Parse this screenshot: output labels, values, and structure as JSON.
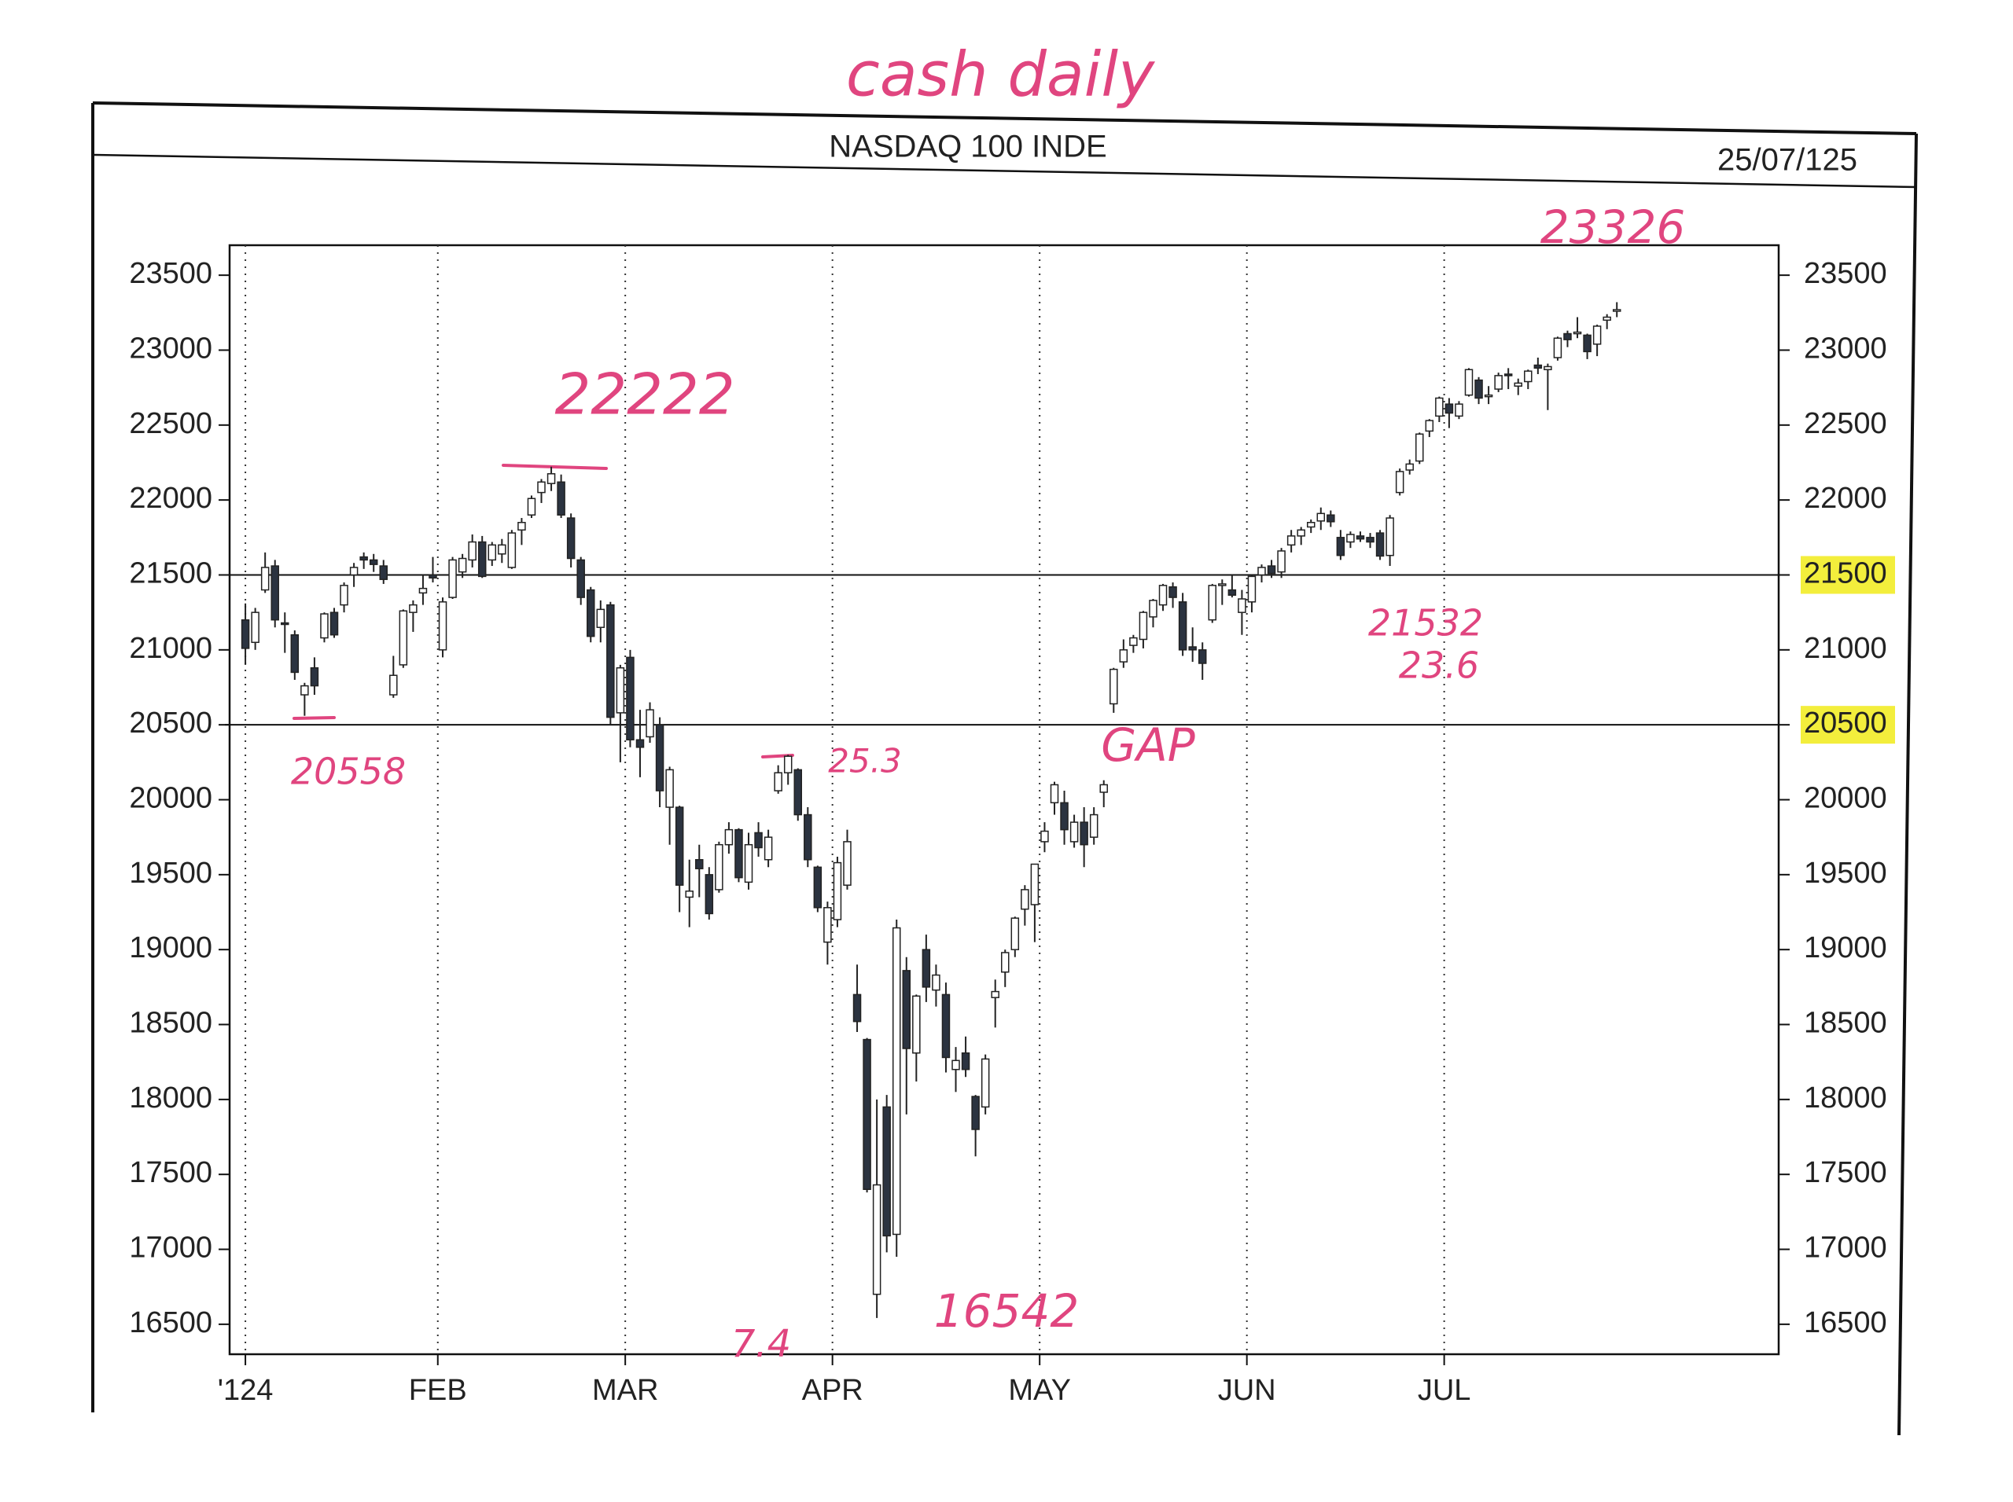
{
  "chart_data": {
    "type": "candlestick",
    "title": "NASDAQ 100 INDE",
    "date": "25/07/125",
    "annotations": [
      "cash daily",
      "23326",
      "22222",
      "20558",
      "25.3",
      "GAP",
      "7.4",
      "16542",
      "21532",
      "23.6"
    ],
    "up_color": "#ffffff",
    "down_color": "#2b3340",
    "annotation_color": "#e0457f",
    "xlim": [
      -1.6,
      155.4
    ],
    "xticks": [
      {
        "value": 0,
        "label": "'124"
      },
      {
        "value": 19.5,
        "label": "FEB"
      },
      {
        "value": 38.5,
        "label": "MAR"
      },
      {
        "value": 59.5,
        "label": "APR"
      },
      {
        "value": 80.5,
        "label": "MAY"
      },
      {
        "value": 101.5,
        "label": "JUN"
      },
      {
        "value": 121.5,
        "label": "JUL"
      }
    ],
    "ylim": [
      16300,
      23700
    ],
    "yticks": [
      16500,
      17000,
      17500,
      18000,
      18500,
      19000,
      19500,
      20000,
      20500,
      21000,
      21500,
      22000,
      22500,
      23000,
      23500
    ],
    "y2lim": [
      16300,
      23700
    ],
    "y2ticks": [
      16500,
      17000,
      17500,
      18000,
      18500,
      19000,
      19500,
      20000,
      20500,
      21000,
      21500,
      22000,
      22500,
      23000,
      23500
    ],
    "y2tick_highlight": {
      "color": "#f3ee3c",
      "values": [
        21500,
        20500
      ]
    },
    "reference_lines": [
      21500,
      20500
    ],
    "grid": "x-dotted",
    "candles": [
      [
        21200,
        21310,
        20900,
        21010
      ],
      [
        21050,
        21280,
        21000,
        21250
      ],
      [
        21400,
        21650,
        21380,
        21550
      ],
      [
        21560,
        21600,
        21150,
        21200
      ],
      [
        21180,
        21250,
        20980,
        21170
      ],
      [
        21100,
        21130,
        20800,
        20850
      ],
      [
        20700,
        20780,
        20560,
        20760
      ],
      [
        20880,
        20950,
        20700,
        20760
      ],
      [
        21080,
        21250,
        21050,
        21240
      ],
      [
        21250,
        21280,
        21080,
        21100
      ],
      [
        21300,
        21450,
        21250,
        21430
      ],
      [
        21500,
        21580,
        21420,
        21550
      ],
      [
        21620,
        21650,
        21540,
        21600
      ],
      [
        21600,
        21640,
        21520,
        21570
      ],
      [
        21560,
        21600,
        21440,
        21470
      ],
      [
        20700,
        20960,
        20680,
        20830
      ],
      [
        20900,
        21270,
        20880,
        21260
      ],
      [
        21250,
        21330,
        21120,
        21300
      ],
      [
        21380,
        21500,
        21300,
        21410
      ],
      [
        21500,
        21620,
        21450,
        21480
      ],
      [
        21000,
        21350,
        20950,
        21320
      ],
      [
        21350,
        21620,
        21340,
        21600
      ],
      [
        21520,
        21640,
        21480,
        21610
      ],
      [
        21600,
        21770,
        21550,
        21720
      ],
      [
        21720,
        21760,
        21480,
        21490
      ],
      [
        21600,
        21720,
        21560,
        21700
      ],
      [
        21640,
        21740,
        21580,
        21700
      ],
      [
        21550,
        21800,
        21540,
        21780
      ],
      [
        21800,
        21880,
        21700,
        21850
      ],
      [
        21900,
        22030,
        21880,
        22010
      ],
      [
        22050,
        22140,
        21980,
        22120
      ],
      [
        22110,
        22222,
        22060,
        22175
      ],
      [
        22120,
        22170,
        21880,
        21900
      ],
      [
        21880,
        21910,
        21550,
        21610
      ],
      [
        21600,
        21620,
        21300,
        21350
      ],
      [
        21400,
        21420,
        21050,
        21090
      ],
      [
        21150,
        21330,
        21050,
        21270
      ],
      [
        21300,
        21320,
        20500,
        20550
      ],
      [
        20580,
        20900,
        20250,
        20880
      ],
      [
        20950,
        21000,
        20350,
        20400
      ],
      [
        20400,
        20600,
        20150,
        20350
      ],
      [
        20420,
        20650,
        20380,
        20600
      ],
      [
        20500,
        20550,
        19950,
        20060
      ],
      [
        19950,
        20220,
        19700,
        20200
      ],
      [
        19950,
        19960,
        19250,
        19430
      ],
      [
        19350,
        19600,
        19150,
        19390
      ],
      [
        19600,
        19700,
        19350,
        19540
      ],
      [
        19500,
        19550,
        19200,
        19240
      ],
      [
        19400,
        19720,
        19380,
        19700
      ],
      [
        19700,
        19850,
        19640,
        19800
      ],
      [
        19800,
        19810,
        19450,
        19480
      ],
      [
        19450,
        19780,
        19400,
        19700
      ],
      [
        19780,
        19850,
        19620,
        19680
      ],
      [
        19600,
        19800,
        19550,
        19750
      ],
      [
        20060,
        20230,
        20040,
        20180
      ],
      [
        20180,
        20300,
        20100,
        20290
      ],
      [
        20200,
        20210,
        19860,
        19900
      ],
      [
        19900,
        19950,
        19550,
        19600
      ],
      [
        19550,
        19560,
        19250,
        19280
      ],
      [
        19050,
        19320,
        18900,
        19280
      ],
      [
        19200,
        19620,
        19150,
        19580
      ],
      [
        19430,
        19800,
        19400,
        19720
      ],
      [
        18700,
        18900,
        18450,
        18520
      ],
      [
        18400,
        18410,
        17380,
        17400
      ],
      [
        16700,
        18000,
        16542,
        17430
      ],
      [
        17950,
        18030,
        16980,
        17090
      ],
      [
        17100,
        19200,
        16950,
        19145
      ],
      [
        18860,
        18950,
        17900,
        18340
      ],
      [
        18310,
        18700,
        18120,
        18690
      ],
      [
        19000,
        19100,
        18650,
        18750
      ],
      [
        18730,
        18900,
        18620,
        18830
      ],
      [
        18700,
        18780,
        18180,
        18280
      ],
      [
        18200,
        18350,
        18050,
        18260
      ],
      [
        18310,
        18420,
        18150,
        18200
      ],
      [
        18020,
        18030,
        17620,
        17800
      ],
      [
        17950,
        18300,
        17900,
        18270
      ],
      [
        18680,
        18800,
        18480,
        18720
      ],
      [
        18850,
        19000,
        18750,
        18980
      ],
      [
        19000,
        19220,
        18950,
        19210
      ],
      [
        19270,
        19430,
        19160,
        19400
      ],
      [
        19300,
        19570,
        19050,
        19570
      ],
      [
        19720,
        19850,
        19650,
        19790
      ],
      [
        19980,
        20120,
        19900,
        20100
      ],
      [
        19980,
        20060,
        19700,
        19800
      ],
      [
        19720,
        19900,
        19680,
        19850
      ],
      [
        19850,
        19950,
        19550,
        19700
      ],
      [
        19750,
        19950,
        19700,
        19900
      ],
      [
        20050,
        20130,
        19950,
        20100
      ],
      [
        20640,
        20880,
        20580,
        20870
      ],
      [
        20920,
        21070,
        20880,
        21000
      ],
      [
        21030,
        21100,
        20980,
        21080
      ],
      [
        21070,
        21260,
        21010,
        21250
      ],
      [
        21220,
        21340,
        21150,
        21330
      ],
      [
        21300,
        21440,
        21260,
        21430
      ],
      [
        21420,
        21450,
        21280,
        21350
      ],
      [
        21320,
        21380,
        20960,
        21000
      ],
      [
        21020,
        21150,
        20920,
        21000
      ],
      [
        21000,
        21050,
        20800,
        20910
      ],
      [
        21200,
        21440,
        21180,
        21430
      ],
      [
        21440,
        21470,
        21300,
        21440
      ],
      [
        21400,
        21500,
        21350,
        21365
      ],
      [
        21250,
        21400,
        21100,
        21340
      ],
      [
        21320,
        21500,
        21250,
        21490
      ],
      [
        21500,
        21570,
        21450,
        21550
      ],
      [
        21560,
        21600,
        21480,
        21510
      ],
      [
        21520,
        21680,
        21480,
        21660
      ],
      [
        21700,
        21800,
        21650,
        21760
      ],
      [
        21760,
        21820,
        21700,
        21800
      ],
      [
        21820,
        21870,
        21780,
        21850
      ],
      [
        21860,
        21950,
        21800,
        21910
      ],
      [
        21900,
        21930,
        21820,
        21855
      ],
      [
        21750,
        21800,
        21600,
        21630
      ],
      [
        21720,
        21790,
        21680,
        21770
      ],
      [
        21760,
        21790,
        21720,
        21740
      ],
      [
        21750,
        21780,
        21680,
        21720
      ],
      [
        21780,
        21800,
        21600,
        21626
      ],
      [
        21630,
        21900,
        21560,
        21880
      ],
      [
        22050,
        22210,
        22030,
        22190
      ],
      [
        22200,
        22270,
        22170,
        22240
      ],
      [
        22260,
        22450,
        22240,
        22440
      ],
      [
        22460,
        22540,
        22420,
        22530
      ],
      [
        22560,
        22690,
        22520,
        22680
      ],
      [
        22640,
        22680,
        22480,
        22580
      ],
      [
        22560,
        22660,
        22540,
        22640
      ],
      [
        22700,
        22880,
        22690,
        22870
      ],
      [
        22800,
        22820,
        22640,
        22680
      ],
      [
        22700,
        22760,
        22640,
        22700
      ],
      [
        22740,
        22850,
        22720,
        22830
      ],
      [
        22840,
        22880,
        22740,
        22830
      ],
      [
        22760,
        22810,
        22700,
        22780
      ],
      [
        22790,
        22870,
        22740,
        22860
      ],
      [
        22900,
        22950,
        22840,
        22880
      ],
      [
        22870,
        22910,
        22600,
        22890
      ],
      [
        22950,
        23090,
        22930,
        23080
      ],
      [
        23110,
        23130,
        23020,
        23070
      ],
      [
        23120,
        23220,
        23080,
        23120
      ],
      [
        23100,
        23110,
        22940,
        22990
      ],
      [
        23040,
        23170,
        22960,
        23160
      ],
      [
        23200,
        23240,
        23140,
        23220
      ],
      [
        23260,
        23320,
        23220,
        23270
      ]
    ]
  }
}
